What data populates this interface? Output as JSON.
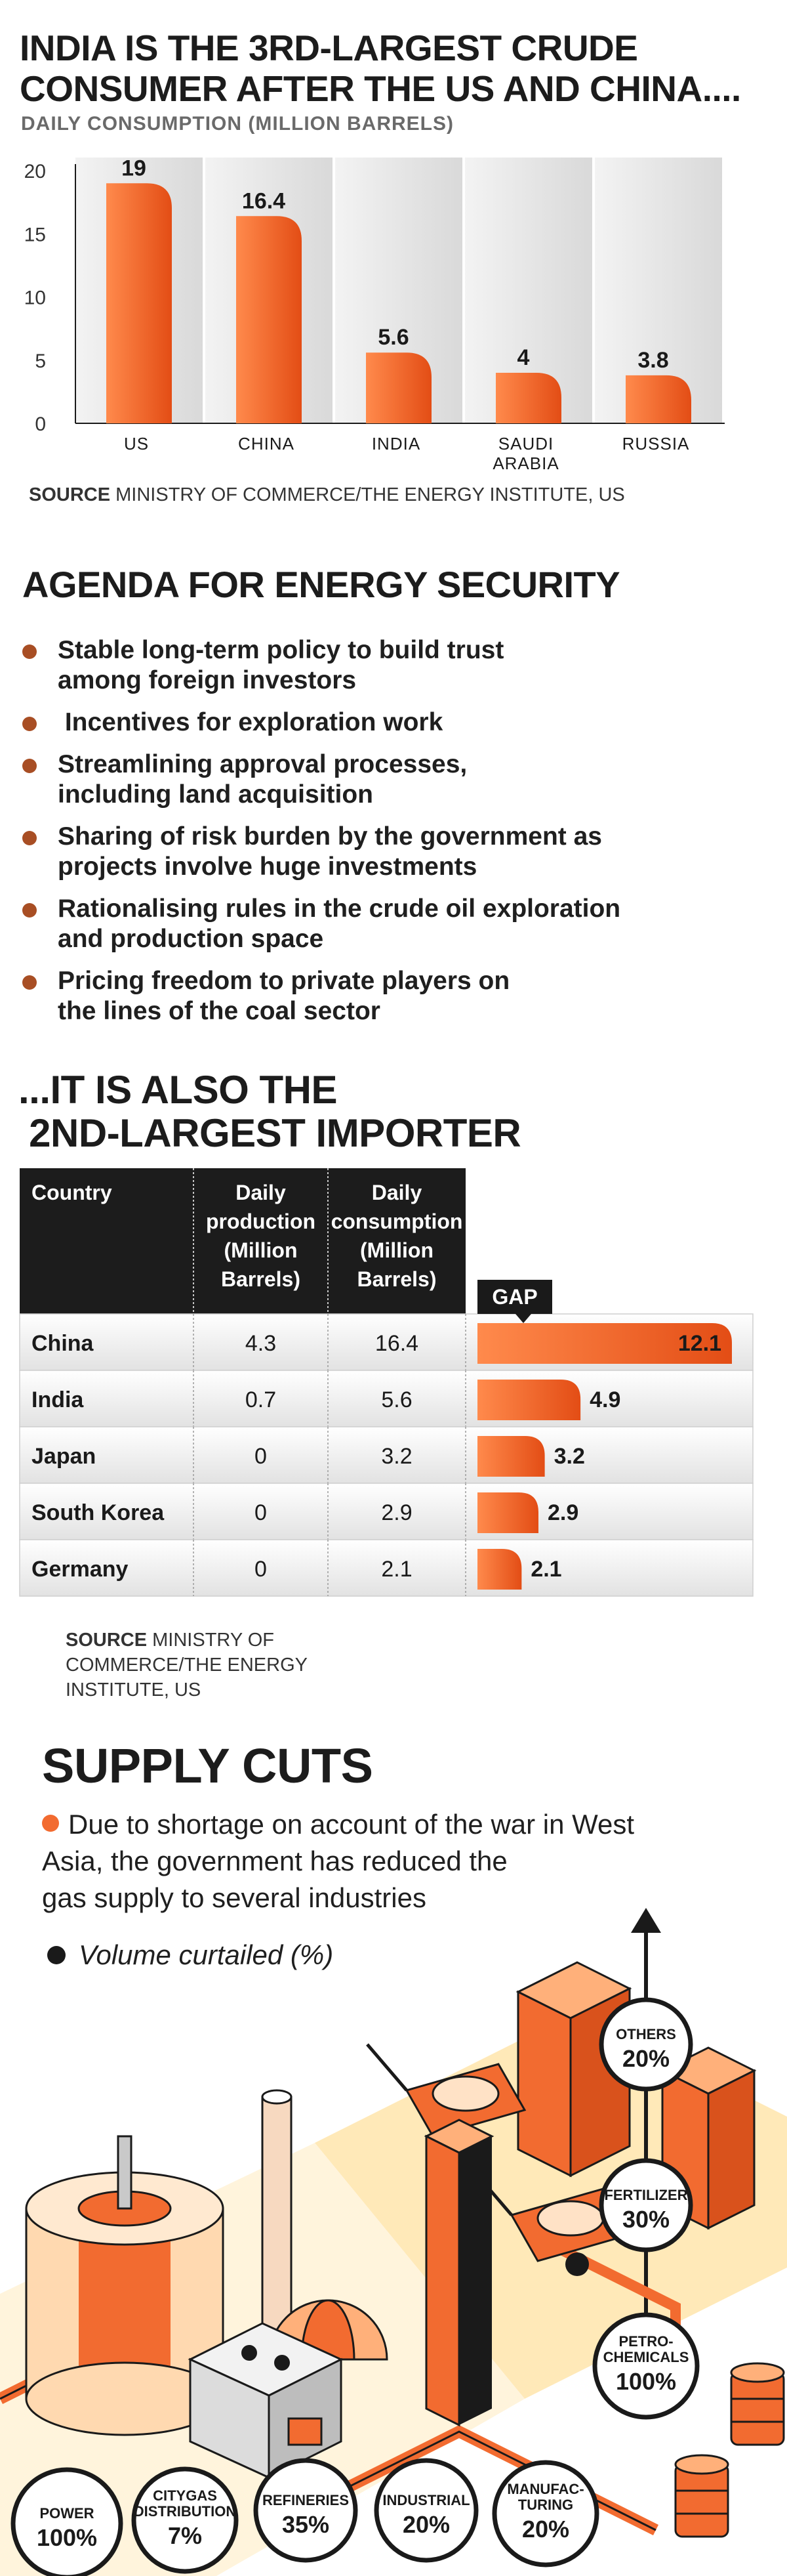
{
  "section1": {
    "title_line1": "INDIA IS THE 3RD-LARGEST CRUDE",
    "title_line2": "CONSUMER AFTER THE US AND CHINA....",
    "subtitle": "DAILY CONSUMPTION (MILLION BARRELS)",
    "source_bold": "SOURCE",
    "source_text": " MINISTRY OF COMMERCE/THE ENERGY INSTITUTE, US"
  },
  "section2": {
    "title": "AGENDA FOR ENERGY SECURITY",
    "items": [
      [
        "Stable long-term policy to build trust",
        "among foreign investors"
      ],
      [
        " Incentives for exploration work"
      ],
      [
        "Streamlining approval processes,",
        "including land acquisition"
      ],
      [
        "Sharing of risk burden by the government as",
        "projects involve huge investments"
      ],
      [
        "Rationalising rules in the crude oil exploration",
        "and production space"
      ],
      [
        "Pricing freedom to private players on",
        "the lines of the coal sector"
      ]
    ]
  },
  "section3": {
    "title_line1": "...IT IS ALSO THE",
    "title_line2": " 2ND-LARGEST IMPORTER",
    "gap_label": "GAP",
    "source_bold": "SOURCE",
    "source_lines": [
      " MINISTRY OF",
      "COMMERCE/THE ENERGY",
      "INSTITUTE, US"
    ]
  },
  "section4": {
    "title": "SUPPLY CUTS",
    "text_lines": [
      "Due to shortage on account of the war in West",
      "Asia, the government has reduced the",
      "gas supply to several industries"
    ],
    "legend": "Volume curtailed (%)"
  },
  "colors": {
    "accent_orange": "#f26b30",
    "bar_light": "#ff8a4c",
    "bar_dark": "#e8551e",
    "dark": "#1a1a1a",
    "bullet_brown": "#a84e24"
  },
  "chart_data": [
    {
      "type": "bar",
      "title": "INDIA IS THE 3RD-LARGEST CRUDE CONSUMER AFTER THE US AND CHINA....",
      "subtitle": "DAILY CONSUMPTION (MILLION BARRELS)",
      "categories": [
        "US",
        "CHINA",
        "INDIA",
        "SAUDI\nARABIA",
        "RUSSIA"
      ],
      "values": [
        19,
        16.4,
        5.6,
        4,
        3.8
      ],
      "value_labels": [
        "19",
        "16.4",
        "5.6",
        "4",
        "3.8"
      ],
      "yticks": [
        "0",
        "5",
        "10",
        "15",
        "20"
      ],
      "ylim": [
        0,
        20
      ],
      "grid": false
    },
    {
      "type": "table",
      "columns": [
        "Country",
        "Daily\nproduction\n(Million\nBarrels)",
        "Daily\nconsumption\n(Million\nBarrels)"
      ],
      "rows": [
        [
          "China",
          "4.3",
          "16.4"
        ],
        [
          "India",
          "0.7",
          "5.6"
        ],
        [
          "Japan",
          "0",
          "3.2"
        ],
        [
          "South Korea",
          "0",
          "2.9"
        ],
        [
          "Germany",
          "0",
          "2.1"
        ]
      ],
      "gap_values": [
        12.1,
        4.9,
        3.2,
        2.9,
        2.1
      ],
      "gap_labels": [
        "12.1",
        "4.9",
        "3.2",
        "2.9",
        "2.1"
      ]
    },
    {
      "type": "bar",
      "title": "SUPPLY CUTS",
      "categories": [
        "OTHERS",
        "FERTILIZER",
        "PETRO-\nCHEMICALS",
        "POWER",
        "CITYGAS\nDISTRIBUTION",
        "REFINERIES",
        "INDUSTRIAL",
        "MANUFAC-\nTURING"
      ],
      "values": [
        20,
        30,
        100,
        100,
        7,
        35,
        20,
        20
      ],
      "value_labels": [
        "20%",
        "30%",
        "100%",
        "100%",
        "7%",
        "35%",
        "20%",
        "20%"
      ],
      "unit": "%"
    }
  ]
}
